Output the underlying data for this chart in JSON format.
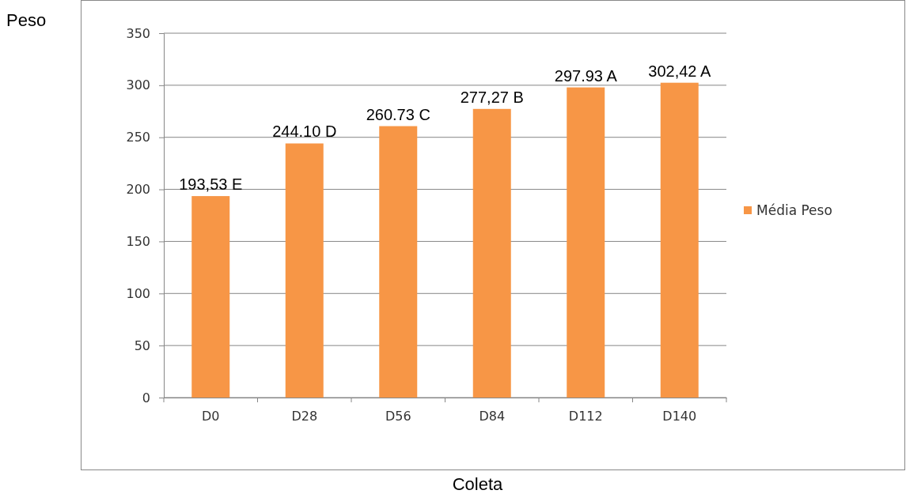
{
  "chart_data": {
    "type": "bar",
    "xlabel": "Coleta",
    "ylabel": "Peso",
    "categories": [
      "D0",
      "D28",
      "D56",
      "D84",
      "D112",
      "D140"
    ],
    "series": [
      {
        "name": "Média Peso",
        "color": "#f79646",
        "values": [
          193.53,
          244.1,
          260.73,
          277.27,
          297.93,
          302.42
        ],
        "value_labels": [
          "193,53 E",
          "244.10 D",
          "260.73 C",
          "277,27 B",
          "297.93 A",
          "302,42 A"
        ]
      }
    ],
    "ylim": [
      0,
      350
    ],
    "yticks": [
      0,
      50,
      100,
      150,
      200,
      250,
      300,
      350
    ],
    "grid": "y",
    "legend": "right"
  }
}
